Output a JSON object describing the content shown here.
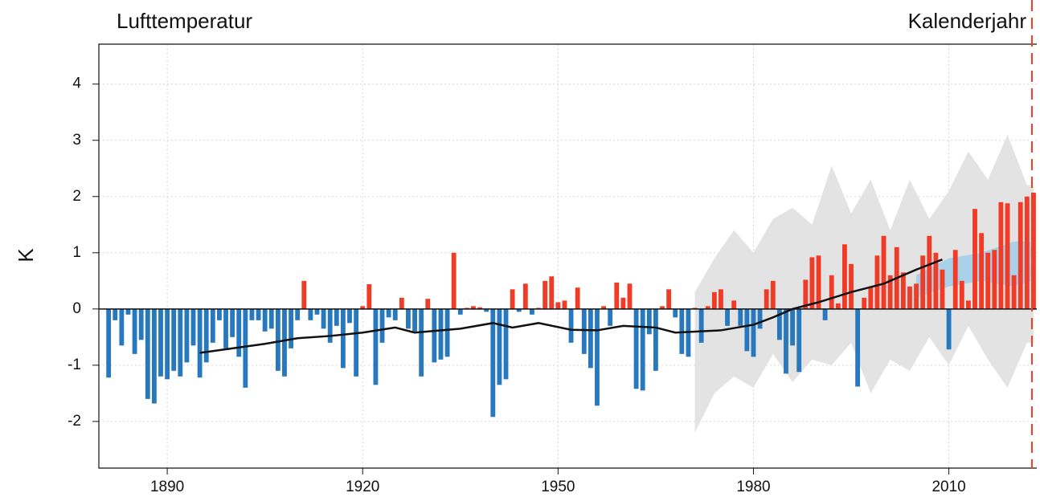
{
  "chart_data": {
    "type": "bar",
    "title": "Lufttemperatur",
    "subtitle": "Kalenderjahr",
    "y_label": "K",
    "x": [
      1881,
      1882,
      1883,
      1884,
      1885,
      1886,
      1887,
      1888,
      1889,
      1890,
      1891,
      1892,
      1893,
      1894,
      1895,
      1896,
      1897,
      1898,
      1899,
      1900,
      1901,
      1902,
      1903,
      1904,
      1905,
      1906,
      1907,
      1908,
      1909,
      1910,
      1911,
      1912,
      1913,
      1914,
      1915,
      1916,
      1917,
      1918,
      1919,
      1920,
      1921,
      1922,
      1923,
      1924,
      1925,
      1926,
      1927,
      1928,
      1929,
      1930,
      1931,
      1932,
      1933,
      1934,
      1935,
      1936,
      1937,
      1938,
      1939,
      1940,
      1941,
      1942,
      1943,
      1944,
      1945,
      1946,
      1947,
      1948,
      1949,
      1950,
      1951,
      1952,
      1953,
      1954,
      1955,
      1956,
      1957,
      1958,
      1959,
      1960,
      1961,
      1962,
      1963,
      1964,
      1965,
      1966,
      1967,
      1968,
      1969,
      1970,
      1971,
      1972,
      1973,
      1974,
      1975,
      1976,
      1977,
      1978,
      1979,
      1980,
      1981,
      1982,
      1983,
      1984,
      1985,
      1986,
      1987,
      1988,
      1989,
      1990,
      1991,
      1992,
      1993,
      1994,
      1995,
      1996,
      1997,
      1998,
      1999,
      2000,
      2001,
      2002,
      2003,
      2004,
      2005,
      2006,
      2007,
      2008,
      2009,
      2010,
      2011,
      2012,
      2013,
      2014,
      2015,
      2016,
      2017,
      2018,
      2019,
      2020,
      2021,
      2022,
      2023
    ],
    "values": [
      -1.22,
      -0.2,
      -0.65,
      -0.1,
      -0.8,
      -0.55,
      -1.6,
      -1.68,
      -1.2,
      -1.25,
      -1.1,
      -1.2,
      -0.95,
      -0.65,
      -1.22,
      -0.95,
      -0.6,
      -0.2,
      -0.7,
      -0.5,
      -0.85,
      -1.4,
      -0.2,
      -0.2,
      -0.4,
      -0.35,
      -1.1,
      -1.2,
      -0.7,
      -0.2,
      0.5,
      -0.2,
      -0.1,
      -0.35,
      -0.6,
      -0.3,
      -1.05,
      -0.25,
      -1.2,
      0.05,
      0.44,
      -1.35,
      -0.6,
      -0.15,
      -0.2,
      0.2,
      -0.35,
      -0.4,
      -1.2,
      0.18,
      -0.95,
      -0.9,
      -0.85,
      1.0,
      -0.1,
      0.02,
      0.05,
      0.03,
      -0.05,
      -1.92,
      -1.35,
      -1.25,
      0.35,
      -0.05,
      0.45,
      -0.1,
      0.02,
      0.5,
      0.58,
      0.12,
      0.15,
      -0.6,
      0.38,
      -0.8,
      -1.05,
      -1.72,
      0.05,
      -0.3,
      0.47,
      0.2,
      0.45,
      -1.42,
      -1.45,
      -0.45,
      -1.1,
      0.05,
      0.35,
      -0.15,
      -0.8,
      -0.85,
      0.02,
      -0.6,
      0.05,
      0.3,
      0.35,
      -0.3,
      0.15,
      -0.3,
      -0.75,
      -0.85,
      -0.35,
      0.35,
      0.5,
      -0.55,
      -1.15,
      -0.65,
      -1.12,
      0.52,
      0.92,
      0.95,
      -0.2,
      0.6,
      0.1,
      1.15,
      0.8,
      -1.38,
      0.2,
      0.4,
      0.95,
      1.3,
      0.6,
      1.1,
      0.65,
      0.4,
      0.45,
      0.95,
      1.3,
      1.0,
      0.7,
      -0.72,
      1.05,
      0.5,
      0.15,
      1.78,
      1.35,
      1.0,
      1.05,
      1.9,
      1.88,
      0.6,
      1.9,
      2.0,
      2.07
    ],
    "positive_color": "#f03b27",
    "negative_color": "#2878be",
    "smoothed": {
      "color": "#111111",
      "x": [
        1895,
        1900,
        1905,
        1910,
        1915,
        1920,
        1925,
        1928,
        1935,
        1940,
        1943,
        1947,
        1952,
        1956,
        1960,
        1965,
        1968,
        1975,
        1980,
        1983,
        1986,
        1990,
        1995,
        2000,
        2005,
        2009
      ],
      "values": [
        -0.78,
        -0.7,
        -0.62,
        -0.52,
        -0.48,
        -0.42,
        -0.33,
        -0.42,
        -0.35,
        -0.25,
        -0.33,
        -0.25,
        -0.37,
        -0.38,
        -0.3,
        -0.33,
        -0.42,
        -0.38,
        -0.28,
        -0.15,
        0.0,
        0.12,
        0.3,
        0.45,
        0.7,
        0.88
      ]
    },
    "bands": [
      {
        "color": "#e3e3e3",
        "x": [
          1971,
          1974,
          1977,
          1980,
          1983,
          1986,
          1989,
          1992,
          1995,
          1998,
          2001,
          2004,
          2007,
          2010,
          2013,
          2016,
          2019,
          2022,
          2023
        ],
        "lower": [
          -2.2,
          -1.5,
          -1.2,
          -1.4,
          -0.8,
          -1.3,
          -0.9,
          -1.0,
          -0.6,
          -1.5,
          -0.9,
          -1.1,
          -0.5,
          -1.0,
          -0.3,
          -0.9,
          -1.4,
          -0.6,
          -0.6
        ],
        "upper": [
          0.3,
          0.9,
          1.4,
          1.0,
          1.6,
          1.8,
          1.5,
          2.55,
          1.7,
          2.3,
          1.4,
          2.3,
          1.6,
          2.1,
          2.8,
          2.3,
          3.1,
          2.2,
          2.2
        ]
      },
      {
        "color": "#a9d1ea",
        "x": [
          2005,
          2010,
          2015,
          2020,
          2023
        ],
        "lower": [
          0.2,
          0.4,
          0.5,
          0.4,
          0.5
        ],
        "upper": [
          0.6,
          0.9,
          1.0,
          1.2,
          1.2
        ]
      }
    ],
    "vline": 2023,
    "vline_color": "#f03b27",
    "xlim": [
      1879.5,
      2023.5
    ],
    "xticks": [
      1890,
      1920,
      1950,
      1980,
      2010
    ],
    "ylim": [
      -2.83,
      4.71
    ],
    "yticks": [
      -2,
      -1,
      0,
      1,
      2,
      3,
      4
    ],
    "grid": true
  }
}
